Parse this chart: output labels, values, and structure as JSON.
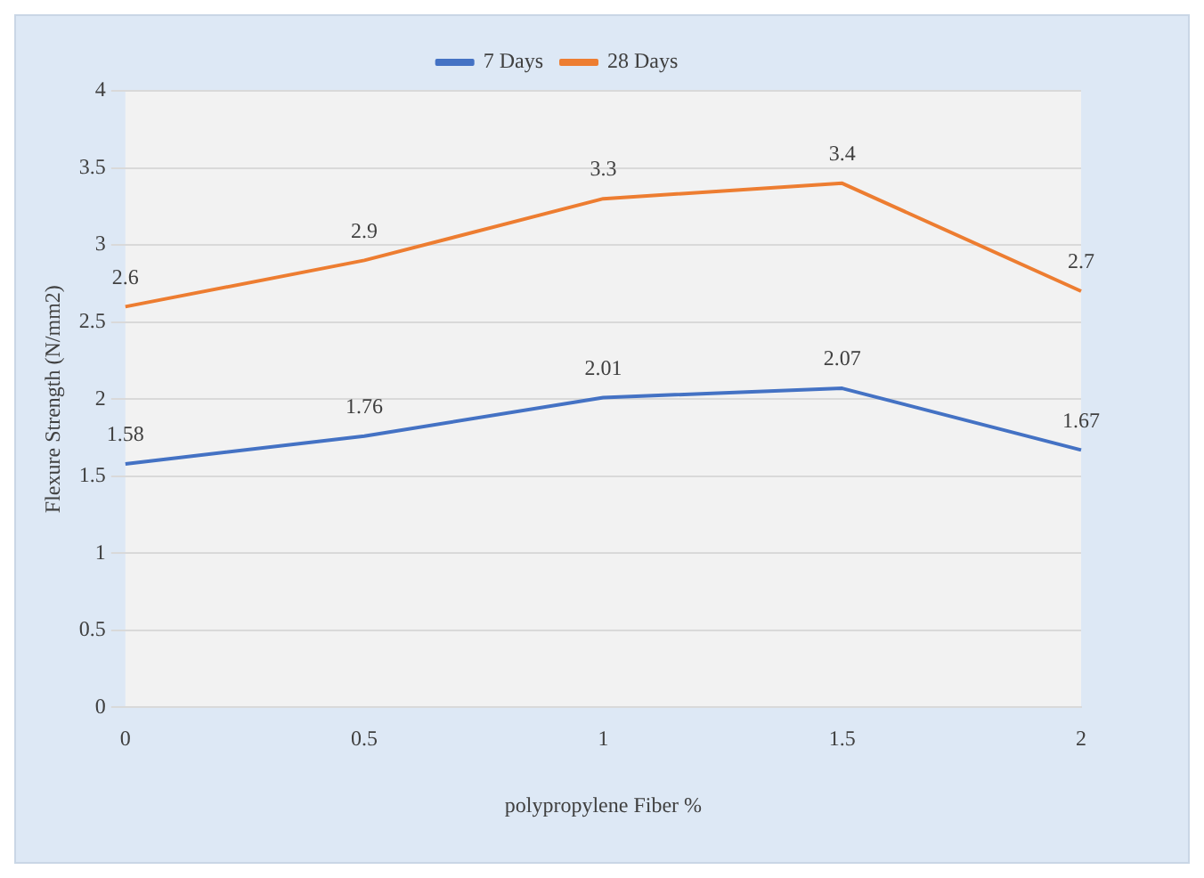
{
  "chart_data": {
    "type": "line",
    "xlabel": "polypropylene Fiber %",
    "ylabel": "Flexure Strength (N/mm2)",
    "categories": [
      "0",
      "0.5",
      "1",
      "1.5",
      "2"
    ],
    "series": [
      {
        "name": "7 Days",
        "color": "#4472c4",
        "values": [
          1.58,
          1.76,
          2.01,
          2.07,
          1.67
        ]
      },
      {
        "name": "28 Days",
        "color": "#ed7d31",
        "values": [
          2.6,
          2.9,
          3.3,
          3.4,
          2.7
        ]
      }
    ],
    "ylim": [
      0,
      4
    ],
    "yticks": [
      0,
      0.5,
      1,
      1.5,
      2,
      2.5,
      3,
      3.5,
      4
    ],
    "grid": "y",
    "legend": "top",
    "data_labels": true,
    "marker": "none",
    "line_style": "solid"
  }
}
